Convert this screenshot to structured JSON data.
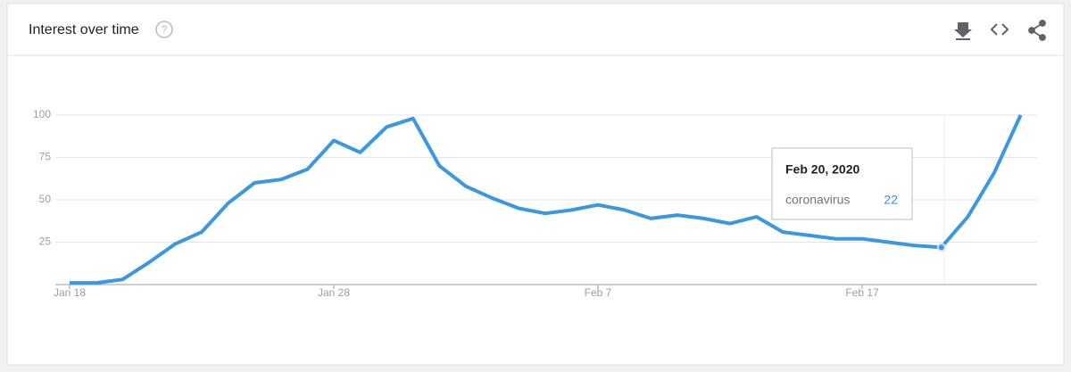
{
  "header": {
    "title": "Interest over time"
  },
  "chart_data": {
    "type": "line",
    "categories": [
      "Jan 18",
      null,
      null,
      null,
      null,
      null,
      null,
      null,
      null,
      null,
      "Jan 28",
      null,
      null,
      null,
      null,
      null,
      null,
      null,
      null,
      null,
      "Feb 7",
      null,
      null,
      null,
      null,
      null,
      null,
      null,
      null,
      null,
      "Feb 17",
      null,
      null,
      null,
      null,
      null,
      null
    ],
    "series": [
      {
        "name": "coronavirus",
        "color": "#4285f4",
        "values": [
          1,
          1,
          3,
          13,
          24,
          31,
          48,
          60,
          62,
          68,
          85,
          78,
          93,
          98,
          70,
          58,
          51,
          45,
          42,
          44,
          47,
          44,
          39,
          41,
          39,
          36,
          40,
          31,
          29,
          27,
          27,
          25,
          23,
          22,
          40,
          66,
          100
        ]
      }
    ],
    "ylim": [
      0,
      100
    ],
    "yticks": [
      25,
      50,
      75,
      100
    ],
    "grid": true,
    "tooltip": {
      "date": "Feb 20, 2020",
      "index": 33
    }
  }
}
